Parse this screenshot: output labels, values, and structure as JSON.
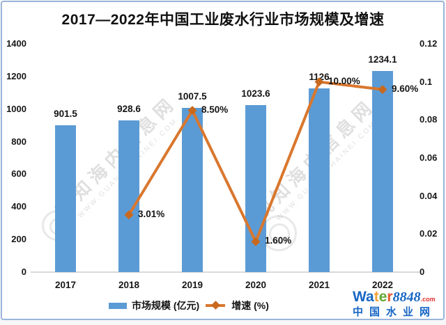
{
  "title": "2017—2022年中国工业废水行业市场规模及增速",
  "chart_data": {
    "type": "bar-line-combo",
    "title": "2017—2022年中国工业废水行业市场规模及增速",
    "categories": [
      "2017",
      "2018",
      "2019",
      "2020",
      "2021",
      "2022"
    ],
    "series": [
      {
        "name": "市场规模 (亿元)",
        "type": "bar",
        "axis": "left",
        "color": "#5b9bd5",
        "values": [
          901.5,
          928.6,
          1007.5,
          1023.6,
          1126,
          1234.1
        ],
        "labels": [
          "901.5",
          "928.6",
          "1007.5",
          "1023.6",
          "1126",
          "1234.1"
        ]
      },
      {
        "name": "增速 (%)",
        "type": "line",
        "axis": "right",
        "color": "#d9772e",
        "marker_color": "#c8691e",
        "values": [
          null,
          0.0301,
          0.085,
          0.016,
          0.1,
          0.096
        ],
        "labels": [
          "",
          "3.01%",
          "8.50%",
          "1.60%",
          "10.00%",
          "9.60%"
        ]
      }
    ],
    "left_axis": {
      "min": 0,
      "max": 1400,
      "ticks": [
        "1400",
        "1200",
        "1000",
        "800",
        "600",
        "400",
        "200",
        "0"
      ]
    },
    "right_axis": {
      "min": 0,
      "max": 0.12,
      "ticks": [
        "0.12",
        "0.1",
        "0.08",
        "0.06",
        "0.04",
        "0.02",
        "0"
      ]
    },
    "grid": false,
    "legend_position": "bottom"
  },
  "legend": {
    "bar_label": "市场规模 (亿元)",
    "line_label": "增速 (%)"
  },
  "watermark": {
    "line1": "观知海内信息网",
    "line2": "WWW.GUANZHIHAINEI.COM"
  },
  "logo": {
    "word": [
      {
        "ch": "W",
        "color": "#1766c4"
      },
      {
        "ch": "a",
        "color": "#1766c4"
      },
      {
        "ch": "t",
        "color": "#f2a33a"
      },
      {
        "ch": "e",
        "color": "#62a832"
      },
      {
        "ch": "r",
        "color": "#e4592f"
      }
    ],
    "number": "8848",
    "tld": ".com",
    "subtitle": "中国水业网"
  }
}
